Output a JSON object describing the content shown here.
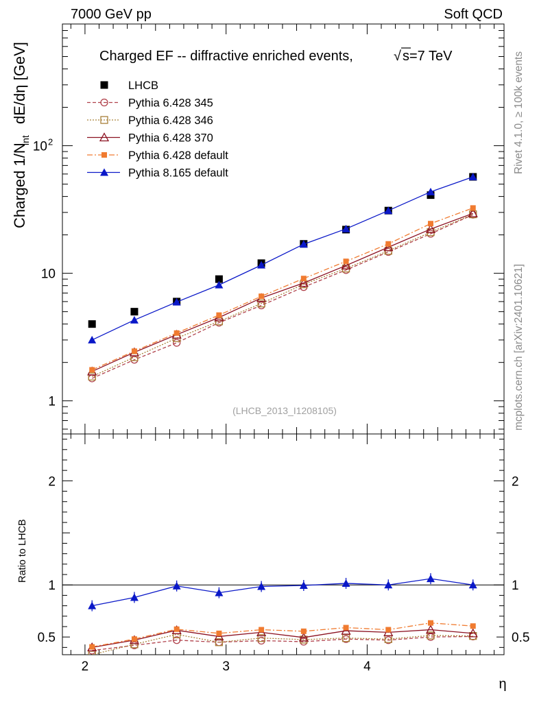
{
  "header": {
    "left": "7000 GeV pp",
    "right": "Soft QCD"
  },
  "side": {
    "rivet": "Rivet 4.1.0, ≥ 100k events",
    "mcplots": "mcplots.cern.ch [arXiv:2401.10621]"
  },
  "analysis_tag": "(LHCB_2013_I1208105)",
  "chart_data": [
    {
      "type": "scatter",
      "title_main": "Charged EF -- diffractive enriched events,",
      "title_energy": "s=7 TeV",
      "ylabel": "Charged 1/N_int  dE/dη [GeV]",
      "ylabel_main": "Charged 1/N",
      "ylabel_sub": "int",
      "ylabel_unit": "dE/dη [GeV]",
      "yscale": "log",
      "xlim": [
        1.84,
        4.97
      ],
      "ylim": [
        0.55,
        900
      ],
      "yticks": [
        {
          "value": 1,
          "label": "1"
        },
        {
          "value": 10,
          "label": "10"
        },
        {
          "value": 100,
          "label": "10",
          "sup": "2"
        }
      ],
      "legend_position": "top-left",
      "x": [
        2.05,
        2.35,
        2.65,
        2.95,
        3.25,
        3.55,
        3.85,
        4.15,
        4.45,
        4.75
      ],
      "series": [
        {
          "name": "LHCB",
          "color": "#000000",
          "marker": "square-filled",
          "line": "none",
          "values": [
            4.0,
            5.0,
            6.0,
            9.0,
            12.0,
            17.0,
            22.0,
            31.0,
            41.0,
            57.0
          ]
        },
        {
          "name": "Pythia 6.428 345",
          "color": "#b0404a",
          "marker": "circle-open",
          "line": "dashed",
          "values": [
            1.5,
            2.1,
            2.85,
            4.1,
            5.6,
            7.8,
            10.6,
            14.7,
            20.4,
            28.8
          ]
        },
        {
          "name": "Pythia 6.428 346",
          "color": "#a88038",
          "marker": "square-open",
          "line": "dotted",
          "values": [
            1.55,
            2.2,
            3.1,
            4.2,
            5.8,
            8.2,
            10.9,
            15.0,
            21.0,
            29.0
          ]
        },
        {
          "name": "Pythia 6.428 370",
          "color": "#8b1020",
          "marker": "triangle-open",
          "line": "solid",
          "values": [
            1.7,
            2.4,
            3.3,
            4.5,
            6.4,
            8.4,
            11.5,
            16.0,
            22.2,
            29.5
          ]
        },
        {
          "name": "Pythia 6.428 default",
          "color": "#f07b30",
          "marker": "square-filled-small",
          "line": "dashdot",
          "values": [
            1.75,
            2.45,
            3.4,
            4.7,
            6.6,
            9.1,
            12.4,
            17.0,
            24.5,
            32.5
          ]
        },
        {
          "name": "Pythia 8.165 default",
          "color": "#0a18c8",
          "marker": "triangle-filled",
          "line": "solid",
          "values": [
            3.0,
            4.3,
            5.95,
            8.1,
            11.6,
            16.9,
            22.3,
            31.0,
            43.5,
            57.0
          ]
        }
      ]
    },
    {
      "type": "scatter",
      "ylabel": "Ratio to LHCB",
      "xlabel": "η",
      "xlim": [
        1.84,
        4.97
      ],
      "ylim": [
        0.33,
        2.45
      ],
      "xticks": [
        {
          "value": 2,
          "label": "2"
        },
        {
          "value": 3,
          "label": "3"
        },
        {
          "value": 4,
          "label": "4"
        }
      ],
      "yticks": [
        {
          "value": 0.5,
          "label": "0.5"
        },
        {
          "value": 1,
          "label": "1"
        },
        {
          "value": 2,
          "label": "2"
        }
      ],
      "reference_line": 1,
      "x": [
        2.05,
        2.35,
        2.65,
        2.95,
        3.25,
        3.55,
        3.85,
        4.15,
        4.45,
        4.75
      ],
      "series": [
        {
          "name": "Pythia 6.428 345",
          "color": "#b0404a",
          "marker": "circle-open",
          "line": "dashed",
          "values": [
            0.37,
            0.42,
            0.47,
            0.45,
            0.465,
            0.455,
            0.48,
            0.47,
            0.5,
            0.505
          ]
        },
        {
          "name": "Pythia 6.428 346",
          "color": "#a88038",
          "marker": "square-open",
          "line": "dotted",
          "values": [
            0.33,
            0.43,
            0.525,
            0.45,
            0.49,
            0.475,
            0.49,
            0.48,
            0.515,
            0.51
          ]
        },
        {
          "name": "Pythia 6.428 370",
          "color": "#8b1020",
          "marker": "triangle-open",
          "line": "solid",
          "values": [
            0.4,
            0.47,
            0.565,
            0.505,
            0.545,
            0.495,
            0.56,
            0.545,
            0.57,
            0.535
          ]
        },
        {
          "name": "Pythia 6.428 default",
          "color": "#f07b30",
          "marker": "square-filled-small",
          "line": "dashdot",
          "values": [
            0.405,
            0.48,
            0.575,
            0.535,
            0.57,
            0.555,
            0.59,
            0.57,
            0.635,
            0.605
          ]
        },
        {
          "name": "Pythia 8.165 default",
          "color": "#0a18c8",
          "marker": "triangle-filled",
          "line": "solid",
          "values": [
            0.8,
            0.88,
            0.99,
            0.925,
            0.985,
            0.995,
            1.015,
            1.0,
            1.06,
            1.0
          ]
        }
      ]
    }
  ]
}
